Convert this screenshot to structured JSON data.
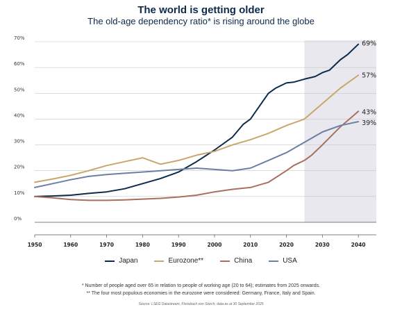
{
  "title": "The world is getting older",
  "subtitle": "The old-age dependency ratio* is rising around the globe",
  "footnote1": "* Number of people aged over 65 in relation to people of working age (20 to 64); estimates from 2025 onwards.",
  "footnote2": "** The four most populous economies in the eurozone were considered: Germany, France, Italy and Spain.",
  "source": "Source: LSEG Datastream, Flossbach von Storch, data as at 30 September 2025",
  "chart_data": {
    "type": "line",
    "xlim": [
      1950,
      2045
    ],
    "ylim": [
      0,
      70
    ],
    "x_ticks": [
      "1950",
      "1960",
      "1970",
      "1980",
      "1990",
      "2000",
      "2010",
      "2020",
      "2030",
      "2040"
    ],
    "y_ticks": [
      "0%",
      "10%",
      "20%",
      "30%",
      "40%",
      "50%",
      "60%",
      "70%"
    ],
    "shaded_region": [
      2025,
      2045
    ],
    "grid": "horizontal",
    "legend_position": "bottom",
    "series": [
      {
        "name": "Japan",
        "color": "#0d2a4a",
        "end_label": "69%",
        "x": [
          1950,
          1955,
          1960,
          1965,
          1970,
          1975,
          1980,
          1985,
          1990,
          1995,
          2000,
          2005,
          2008,
          2010,
          2015,
          2017,
          2020,
          2022,
          2025,
          2028,
          2030,
          2032,
          2035,
          2037,
          2040
        ],
        "y": [
          10,
          10.2,
          10.5,
          11.2,
          11.8,
          13,
          15,
          17,
          19.5,
          23.5,
          28,
          33,
          38,
          40,
          50,
          52,
          54,
          54.3,
          55.5,
          56.5,
          58,
          59,
          63,
          65,
          69
        ]
      },
      {
        "name": "Eurozone**",
        "color": "#c9a66b",
        "end_label": "57%",
        "x": [
          1950,
          1955,
          1960,
          1965,
          1970,
          1975,
          1980,
          1983,
          1985,
          1990,
          1995,
          2000,
          2005,
          2010,
          2015,
          2020,
          2025,
          2030,
          2035,
          2040
        ],
        "y": [
          15.5,
          16.8,
          18.2,
          20,
          22,
          23.5,
          25,
          23.5,
          22.5,
          24,
          26,
          27.5,
          30,
          32,
          34.5,
          37.5,
          40,
          46,
          52,
          57
        ]
      },
      {
        "name": "China",
        "color": "#a86f5e",
        "end_label": "43%",
        "x": [
          1950,
          1955,
          1960,
          1965,
          1970,
          1975,
          1980,
          1985,
          1990,
          1995,
          2000,
          2005,
          2010,
          2015,
          2020,
          2022,
          2025,
          2027,
          2030,
          2035,
          2040
        ],
        "y": [
          10,
          9.5,
          8.8,
          8.5,
          8.5,
          8.7,
          9,
          9.3,
          9.8,
          10.5,
          11.8,
          12.8,
          13.5,
          15.5,
          20,
          22,
          24,
          26,
          30,
          37,
          43
        ]
      },
      {
        "name": "USA",
        "color": "#6b7fa6",
        "end_label": "39%",
        "x": [
          1950,
          1955,
          1960,
          1965,
          1970,
          1975,
          1980,
          1985,
          1990,
          1995,
          2000,
          2005,
          2010,
          2015,
          2020,
          2025,
          2030,
          2035,
          2040
        ],
        "y": [
          13.5,
          15,
          16.5,
          17.8,
          18.5,
          19,
          19.5,
          20,
          20.5,
          21,
          20.5,
          20,
          21,
          24,
          27,
          31,
          35,
          37.5,
          39
        ]
      }
    ]
  }
}
